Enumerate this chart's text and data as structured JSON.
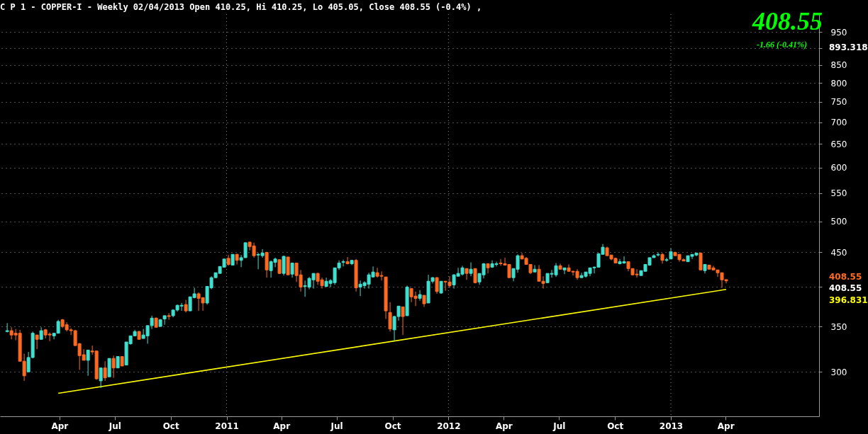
{
  "chart_data": {
    "type": "candlestick",
    "title": "C P 1 - COPPER-I - Weekly 02/04/2013 Open 410.25, Hi 410.25, Lo 405.05, Close 408.55 (-0.4%) ,",
    "log": true,
    "grid": "y",
    "xlim": [
      "2009-12-30",
      "2013-08-27"
    ],
    "xticks": [
      {
        "value": "2010-04-01",
        "label": "Apr"
      },
      {
        "value": "2010-07-01",
        "label": "Jul"
      },
      {
        "value": "2010-10-01",
        "label": "Oct"
      },
      {
        "value": "2011-01-01",
        "label": "2011"
      },
      {
        "value": "2011-04-01",
        "label": "Apr"
      },
      {
        "value": "2011-07-01",
        "label": "Jul"
      },
      {
        "value": "2011-10-01",
        "label": "Oct"
      },
      {
        "value": "2012-01-01",
        "label": "2012"
      },
      {
        "value": "2012-04-01",
        "label": "Apr"
      },
      {
        "value": "2012-07-01",
        "label": "Jul"
      },
      {
        "value": "2012-10-01",
        "label": "Oct"
      },
      {
        "value": "2013-01-01",
        "label": "2013"
      },
      {
        "value": "2013-04-01",
        "label": "Apr"
      }
    ],
    "ylim": [
      258,
      1010
    ],
    "yticks": [
      300,
      350,
      {
        "value": 400,
        "label": null
      },
      450,
      500,
      550,
      600,
      650,
      700,
      750,
      800,
      850,
      {
        "value": 900,
        "label": null
      },
      950
    ],
    "ref_lines": [
      {
        "axis": "x",
        "value": "2011-01-01",
        "color": "#8c8c8c",
        "line_style": "dotted"
      },
      {
        "axis": "x",
        "value": "2012-01-01",
        "color": "#8c8c8c",
        "line_style": "dotted"
      },
      {
        "axis": "x",
        "value": "2013-01-01",
        "color": "#8c8c8c",
        "line_style": "dotted"
      }
    ],
    "annotations": [
      "408.55",
      "-1.66  (-0.41%)",
      "893.318",
      "408.55",
      "408.55",
      "396.831"
    ],
    "series": [
      {
        "type": "line",
        "color": "#ffff00",
        "x": [
          "2010-03-30",
          "2013-04-02"
        ],
        "values": [
          279,
          396.831
        ]
      },
      {
        "type": "candlestick",
        "x": [
          "2010-01-05",
          "2010-01-12",
          "2010-01-19",
          "2010-01-26",
          "2010-02-02",
          "2010-02-09",
          "2010-02-16",
          "2010-02-23",
          "2010-03-02",
          "2010-03-09",
          "2010-03-16",
          "2010-03-23",
          "2010-03-30",
          "2010-04-06",
          "2010-04-13",
          "2010-04-20",
          "2010-04-27",
          "2010-05-04",
          "2010-05-11",
          "2010-05-18",
          "2010-05-25",
          "2010-06-01",
          "2010-06-08",
          "2010-06-15",
          "2010-06-22",
          "2010-06-29",
          "2010-07-06",
          "2010-07-13",
          "2010-07-20",
          "2010-07-27",
          "2010-08-03",
          "2010-08-10",
          "2010-08-17",
          "2010-08-24",
          "2010-08-31",
          "2010-09-07",
          "2010-09-14",
          "2010-09-21",
          "2010-09-28",
          "2010-10-05",
          "2010-10-12",
          "2010-10-19",
          "2010-10-26",
          "2010-11-02",
          "2010-11-09",
          "2010-11-16",
          "2010-11-23",
          "2010-11-30",
          "2010-12-07",
          "2010-12-14",
          "2010-12-21",
          "2010-12-28",
          "2011-01-04",
          "2011-01-11",
          "2011-01-18",
          "2011-01-25",
          "2011-02-01",
          "2011-02-08",
          "2011-02-15",
          "2011-02-22",
          "2011-03-01",
          "2011-03-08",
          "2011-03-15",
          "2011-03-22",
          "2011-03-29",
          "2011-04-05",
          "2011-04-12",
          "2011-04-19",
          "2011-04-26",
          "2011-05-03",
          "2011-05-10",
          "2011-05-17",
          "2011-05-24",
          "2011-05-31",
          "2011-06-07",
          "2011-06-14",
          "2011-06-21",
          "2011-06-28",
          "2011-07-05",
          "2011-07-12",
          "2011-07-19",
          "2011-07-26",
          "2011-08-02",
          "2011-08-09",
          "2011-08-16",
          "2011-08-23",
          "2011-08-30",
          "2011-09-06",
          "2011-09-13",
          "2011-09-20",
          "2011-09-27",
          "2011-10-04",
          "2011-10-11",
          "2011-10-18",
          "2011-10-25",
          "2011-11-01",
          "2011-11-08",
          "2011-11-15",
          "2011-11-22",
          "2011-11-29",
          "2011-12-06",
          "2011-12-13",
          "2011-12-20",
          "2011-12-27",
          "2012-01-03",
          "2012-01-10",
          "2012-01-17",
          "2012-01-24",
          "2012-01-31",
          "2012-02-07",
          "2012-02-14",
          "2012-02-21",
          "2012-02-28",
          "2012-03-06",
          "2012-03-13",
          "2012-03-20",
          "2012-03-27",
          "2012-04-03",
          "2012-04-10",
          "2012-04-17",
          "2012-04-24",
          "2012-05-01",
          "2012-05-08",
          "2012-05-15",
          "2012-05-22",
          "2012-05-29",
          "2012-06-05",
          "2012-06-12",
          "2012-06-19",
          "2012-06-26",
          "2012-07-03",
          "2012-07-10",
          "2012-07-17",
          "2012-07-24",
          "2012-07-31",
          "2012-08-07",
          "2012-08-14",
          "2012-08-21",
          "2012-08-28",
          "2012-09-04",
          "2012-09-11",
          "2012-09-18",
          "2012-09-25",
          "2012-10-02",
          "2012-10-09",
          "2012-10-16",
          "2012-10-23",
          "2012-10-30",
          "2012-11-06",
          "2012-11-13",
          "2012-11-20",
          "2012-11-27",
          "2012-12-04",
          "2012-12-11",
          "2012-12-18",
          "2012-12-25",
          "2013-01-01",
          "2013-01-08",
          "2013-01-15",
          "2013-01-22",
          "2013-01-29",
          "2013-02-05",
          "2013-02-12",
          "2013-02-19",
          "2013-02-26",
          "2013-03-05",
          "2013-03-12",
          "2013-03-19",
          "2013-03-26",
          "2013-04-02"
        ],
        "ohlc": [
          [
            344,
            354,
            343,
            345
          ],
          [
            345,
            349,
            335,
            340
          ],
          [
            342,
            347,
            334,
            340
          ],
          [
            342,
            346,
            311,
            311
          ],
          [
            311,
            319,
            291,
            296
          ],
          [
            300,
            321,
            300,
            315
          ],
          [
            315,
            344,
            314,
            342
          ],
          [
            340,
            340,
            324,
            335
          ],
          [
            335,
            349,
            335,
            345
          ],
          [
            346,
            347,
            336,
            340
          ],
          [
            341,
            343,
            333,
            340
          ],
          [
            339,
            342,
            335,
            342
          ],
          [
            342,
            358,
            342,
            356
          ],
          [
            358,
            359,
            348,
            350
          ],
          [
            352,
            355,
            344,
            346
          ],
          [
            346,
            348,
            340,
            345
          ],
          [
            345,
            346,
            328,
            328
          ],
          [
            330,
            331,
            302,
            317
          ],
          [
            318,
            324,
            312,
            312
          ],
          [
            312,
            323,
            296,
            323
          ],
          [
            322,
            328,
            318,
            321
          ],
          [
            322,
            322,
            292,
            293
          ],
          [
            291,
            304,
            284,
            304
          ],
          [
            304,
            311,
            291,
            294
          ],
          [
            295,
            314,
            295,
            314
          ],
          [
            314,
            317,
            294,
            304
          ],
          [
            304,
            316,
            304,
            316
          ],
          [
            316,
            316,
            306,
            306
          ],
          [
            307,
            332,
            307,
            332
          ],
          [
            330,
            339,
            329,
            339
          ],
          [
            339,
            346,
            339,
            344
          ],
          [
            344,
            345,
            335,
            335
          ],
          [
            336,
            347,
            336,
            340
          ],
          [
            339,
            351,
            330,
            351
          ],
          [
            351,
            363,
            347,
            360
          ],
          [
            360,
            361,
            349,
            349
          ],
          [
            350,
            359,
            350,
            358
          ],
          [
            359,
            363,
            352,
            363
          ],
          [
            363,
            366,
            358,
            362
          ],
          [
            363,
            371,
            361,
            370
          ],
          [
            370,
            377,
            368,
            376
          ],
          [
            375,
            379,
            369,
            376
          ],
          [
            377,
            383,
            367,
            369
          ],
          [
            369,
            387,
            369,
            387
          ],
          [
            386,
            399,
            385,
            391
          ],
          [
            391,
            393,
            369,
            385
          ],
          [
            386,
            386,
            369,
            379
          ],
          [
            379,
            401,
            377,
            401
          ],
          [
            399,
            415,
            397,
            413
          ],
          [
            413,
            420,
            413,
            420
          ],
          [
            419,
            429,
            419,
            429
          ],
          [
            428,
            440,
            428,
            440
          ],
          [
            441,
            446,
            430,
            432
          ],
          [
            431,
            447,
            431,
            447
          ],
          [
            447,
            448,
            432,
            438
          ],
          [
            438,
            446,
            428,
            442
          ],
          [
            442,
            465,
            442,
            465
          ],
          [
            466,
            466,
            453,
            459
          ],
          [
            460,
            465,
            442,
            445
          ],
          [
            446,
            449,
            425,
            447
          ],
          [
            445,
            455,
            442,
            449
          ],
          [
            450,
            451,
            413,
            424
          ],
          [
            423,
            438,
            413,
            436
          ],
          [
            435,
            442,
            428,
            440
          ],
          [
            439,
            439,
            418,
            419
          ],
          [
            419,
            445,
            416,
            444
          ],
          [
            443,
            443,
            417,
            417
          ],
          [
            418,
            434,
            413,
            434
          ],
          [
            434,
            434,
            407,
            416
          ],
          [
            417,
            424,
            394,
            400
          ],
          [
            401,
            409,
            387,
            402
          ],
          [
            400,
            414,
            397,
            412
          ],
          [
            410,
            419,
            398,
            419
          ],
          [
            419,
            420,
            403,
            408
          ],
          [
            410,
            413,
            398,
            402
          ],
          [
            401,
            413,
            400,
            408
          ],
          [
            405,
            411,
            400,
            409
          ],
          [
            406,
            427,
            403,
            427
          ],
          [
            427,
            438,
            424,
            434
          ],
          [
            435,
            439,
            429,
            436
          ],
          [
            436,
            443,
            432,
            433
          ],
          [
            433,
            438,
            431,
            438
          ],
          [
            438,
            440,
            394,
            399
          ],
          [
            400,
            409,
            388,
            404
          ],
          [
            402,
            408,
            398,
            406
          ],
          [
            404,
            420,
            398,
            417
          ],
          [
            414,
            429,
            413,
            421
          ],
          [
            420,
            427,
            413,
            415
          ],
          [
            416,
            422,
            409,
            415
          ],
          [
            414,
            414,
            359,
            369
          ],
          [
            367,
            380,
            344,
            347
          ],
          [
            346,
            363,
            333,
            362
          ],
          [
            362,
            375,
            357,
            375
          ],
          [
            374,
            374,
            340,
            362
          ],
          [
            363,
            402,
            363,
            400
          ],
          [
            398,
            398,
            380,
            387
          ],
          [
            388,
            394,
            375,
            385
          ],
          [
            385,
            396,
            382,
            390
          ],
          [
            389,
            389,
            374,
            378
          ],
          [
            379,
            417,
            379,
            408
          ],
          [
            408,
            414,
            405,
            413
          ],
          [
            413,
            414,
            391,
            394
          ],
          [
            392,
            408,
            391,
            408
          ],
          [
            408,
            408,
            395,
            407
          ],
          [
            407,
            415,
            399,
            402
          ],
          [
            403,
            418,
            398,
            417
          ],
          [
            415,
            427,
            415,
            419
          ],
          [
            418,
            430,
            416,
            427
          ],
          [
            426,
            426,
            410,
            419
          ],
          [
            419,
            435,
            415,
            425
          ],
          [
            426,
            426,
            405,
            406
          ],
          [
            407,
            419,
            403,
            419
          ],
          [
            417,
            434,
            412,
            433
          ],
          [
            433,
            433,
            419,
            427
          ],
          [
            428,
            438,
            427,
            433
          ],
          [
            432,
            436,
            429,
            433
          ],
          [
            434,
            440,
            430,
            433
          ],
          [
            433,
            442,
            431,
            431
          ],
          [
            432,
            432,
            413,
            413
          ],
          [
            413,
            426,
            408,
            426
          ],
          [
            425,
            447,
            420,
            445
          ],
          [
            445,
            449,
            440,
            440
          ],
          [
            441,
            443,
            432,
            432
          ],
          [
            432,
            432,
            418,
            420
          ],
          [
            421,
            431,
            421,
            425
          ],
          [
            425,
            431,
            408,
            408
          ],
          [
            408,
            415,
            398,
            405
          ],
          [
            406,
            419,
            406,
            419
          ],
          [
            418,
            424,
            413,
            419
          ],
          [
            417,
            434,
            414,
            430
          ],
          [
            430,
            433,
            425,
            425
          ],
          [
            424,
            427,
            418,
            427
          ],
          [
            427,
            432,
            422,
            422
          ],
          [
            422,
            423,
            416,
            421
          ],
          [
            422,
            425,
            410,
            413
          ],
          [
            413,
            420,
            413,
            416
          ],
          [
            415,
            421,
            413,
            421
          ],
          [
            419,
            427,
            415,
            427
          ],
          [
            427,
            429,
            419,
            428
          ],
          [
            428,
            449,
            428,
            448
          ],
          [
            447,
            463,
            447,
            458
          ],
          [
            457,
            459,
            445,
            445
          ],
          [
            446,
            446,
            438,
            440
          ],
          [
            441,
            442,
            434,
            434
          ],
          [
            433,
            440,
            432,
            436
          ],
          [
            434,
            444,
            433,
            436
          ],
          [
            436,
            436,
            422,
            426
          ],
          [
            426,
            426,
            416,
            417
          ],
          [
            418,
            425,
            413,
            417
          ],
          [
            416,
            423,
            416,
            423
          ],
          [
            422,
            432,
            422,
            432
          ],
          [
            431,
            442,
            430,
            442
          ],
          [
            442,
            447,
            442,
            445
          ],
          [
            446,
            450,
            444,
            447
          ],
          [
            447,
            449,
            433,
            438
          ],
          [
            438,
            442,
            436,
            439
          ],
          [
            440,
            456,
            440,
            451
          ],
          [
            450,
            451,
            445,
            445
          ],
          [
            447,
            447,
            436,
            439
          ],
          [
            439,
            441,
            437,
            437
          ],
          [
            436,
            445,
            436,
            445
          ],
          [
            444,
            447,
            440,
            447
          ],
          [
            446,
            449,
            444,
            449
          ],
          [
            449,
            449,
            424,
            424
          ],
          [
            423,
            432,
            419,
            432
          ],
          [
            431,
            431,
            425,
            425
          ],
          [
            427,
            430,
            424,
            424
          ],
          [
            424,
            424,
            414,
            420
          ],
          [
            420,
            420,
            399,
            410
          ],
          [
            410.25,
            410.25,
            405.05,
            408.55
          ]
        ],
        "colors": [
          "#40e0d0",
          "#ff6a21",
          "#ff6a21",
          "#ff6a21",
          "#ff6a21",
          "#40e0d0",
          "#40e0d0",
          "#ff6a21",
          "#40e0d0",
          "#ff6a21",
          "#ff6a21",
          "#40e0d0",
          "#40e0d0",
          "#ff6a21",
          "#ff6a21",
          "#ff6a21",
          "#ff6a21",
          "#ff6a21",
          "#ff6a21",
          "#40e0d0",
          "#ff6a21",
          "#ff6a21",
          "#40e0d0",
          "#ff6a21",
          "#40e0d0",
          "#ff6a21",
          "#40e0d0",
          "#ff6a21",
          "#40e0d0",
          "#40e0d0",
          "#40e0d0",
          "#ff6a21",
          "#40e0d0",
          "#40e0d0",
          "#40e0d0",
          "#ff6a21",
          "#40e0d0",
          "#40e0d0",
          "#ff6a21",
          "#40e0d0",
          "#40e0d0",
          "#40e0d0",
          "#ff6a21",
          "#40e0d0",
          "#40e0d0",
          "#ff6a21",
          "#ff6a21",
          "#40e0d0",
          "#40e0d0",
          "#40e0d0",
          "#40e0d0",
          "#40e0d0",
          "#ff6a21",
          "#40e0d0",
          "#ff6a21",
          "#40e0d0",
          "#40e0d0",
          "#ff6a21",
          "#ff6a21",
          "#40e0d0",
          "#40e0d0",
          "#ff6a21",
          "#40e0d0",
          "#40e0d0",
          "#ff6a21",
          "#40e0d0",
          "#ff6a21",
          "#40e0d0",
          "#ff6a21",
          "#ff6a21",
          "#40e0d0",
          "#40e0d0",
          "#40e0d0",
          "#ff6a21",
          "#ff6a21",
          "#40e0d0",
          "#40e0d0",
          "#40e0d0",
          "#40e0d0",
          "#40e0d0",
          "#ff6a21",
          "#40e0d0",
          "#ff6a21",
          "#40e0d0",
          "#40e0d0",
          "#40e0d0",
          "#40e0d0",
          "#ff6a21",
          "#ff6a21",
          "#ff6a21",
          "#ff6a21",
          "#40e0d0",
          "#40e0d0",
          "#ff6a21",
          "#40e0d0",
          "#ff6a21",
          "#ff6a21",
          "#40e0d0",
          "#ff6a21",
          "#40e0d0",
          "#40e0d0",
          "#ff6a21",
          "#40e0d0",
          "#ff6a21",
          "#ff6a21",
          "#40e0d0",
          "#40e0d0",
          "#40e0d0",
          "#ff6a21",
          "#40e0d0",
          "#ff6a21",
          "#40e0d0",
          "#40e0d0",
          "#ff6a21",
          "#40e0d0",
          "#40e0d0",
          "#ff6a21",
          "#ff6a21",
          "#ff6a21",
          "#40e0d0",
          "#40e0d0",
          "#ff6a21",
          "#ff6a21",
          "#ff6a21",
          "#40e0d0",
          "#ff6a21",
          "#ff6a21",
          "#40e0d0",
          "#40e0d0",
          "#40e0d0",
          "#ff6a21",
          "#40e0d0",
          "#ff6a21",
          "#ff6a21",
          "#ff6a21",
          "#40e0d0",
          "#40e0d0",
          "#40e0d0",
          "#40e0d0",
          "#40e0d0",
          "#40e0d0",
          "#ff6a21",
          "#ff6a21",
          "#ff6a21",
          "#40e0d0",
          "#40e0d0",
          "#ff6a21",
          "#ff6a21",
          "#ff6a21",
          "#40e0d0",
          "#40e0d0",
          "#40e0d0",
          "#40e0d0",
          "#40e0d0",
          "#ff6a21",
          "#40e0d0",
          "#40e0d0",
          "#ff6a21",
          "#ff6a21",
          "#ff6a21",
          "#40e0d0",
          "#40e0d0",
          "#40e0d0",
          "#ff6a21",
          "#40e0d0",
          "#ff6a21",
          "#ff6a21",
          "#ff6a21",
          "#ff6a21",
          "#ff6a21"
        ]
      }
    ]
  }
}
